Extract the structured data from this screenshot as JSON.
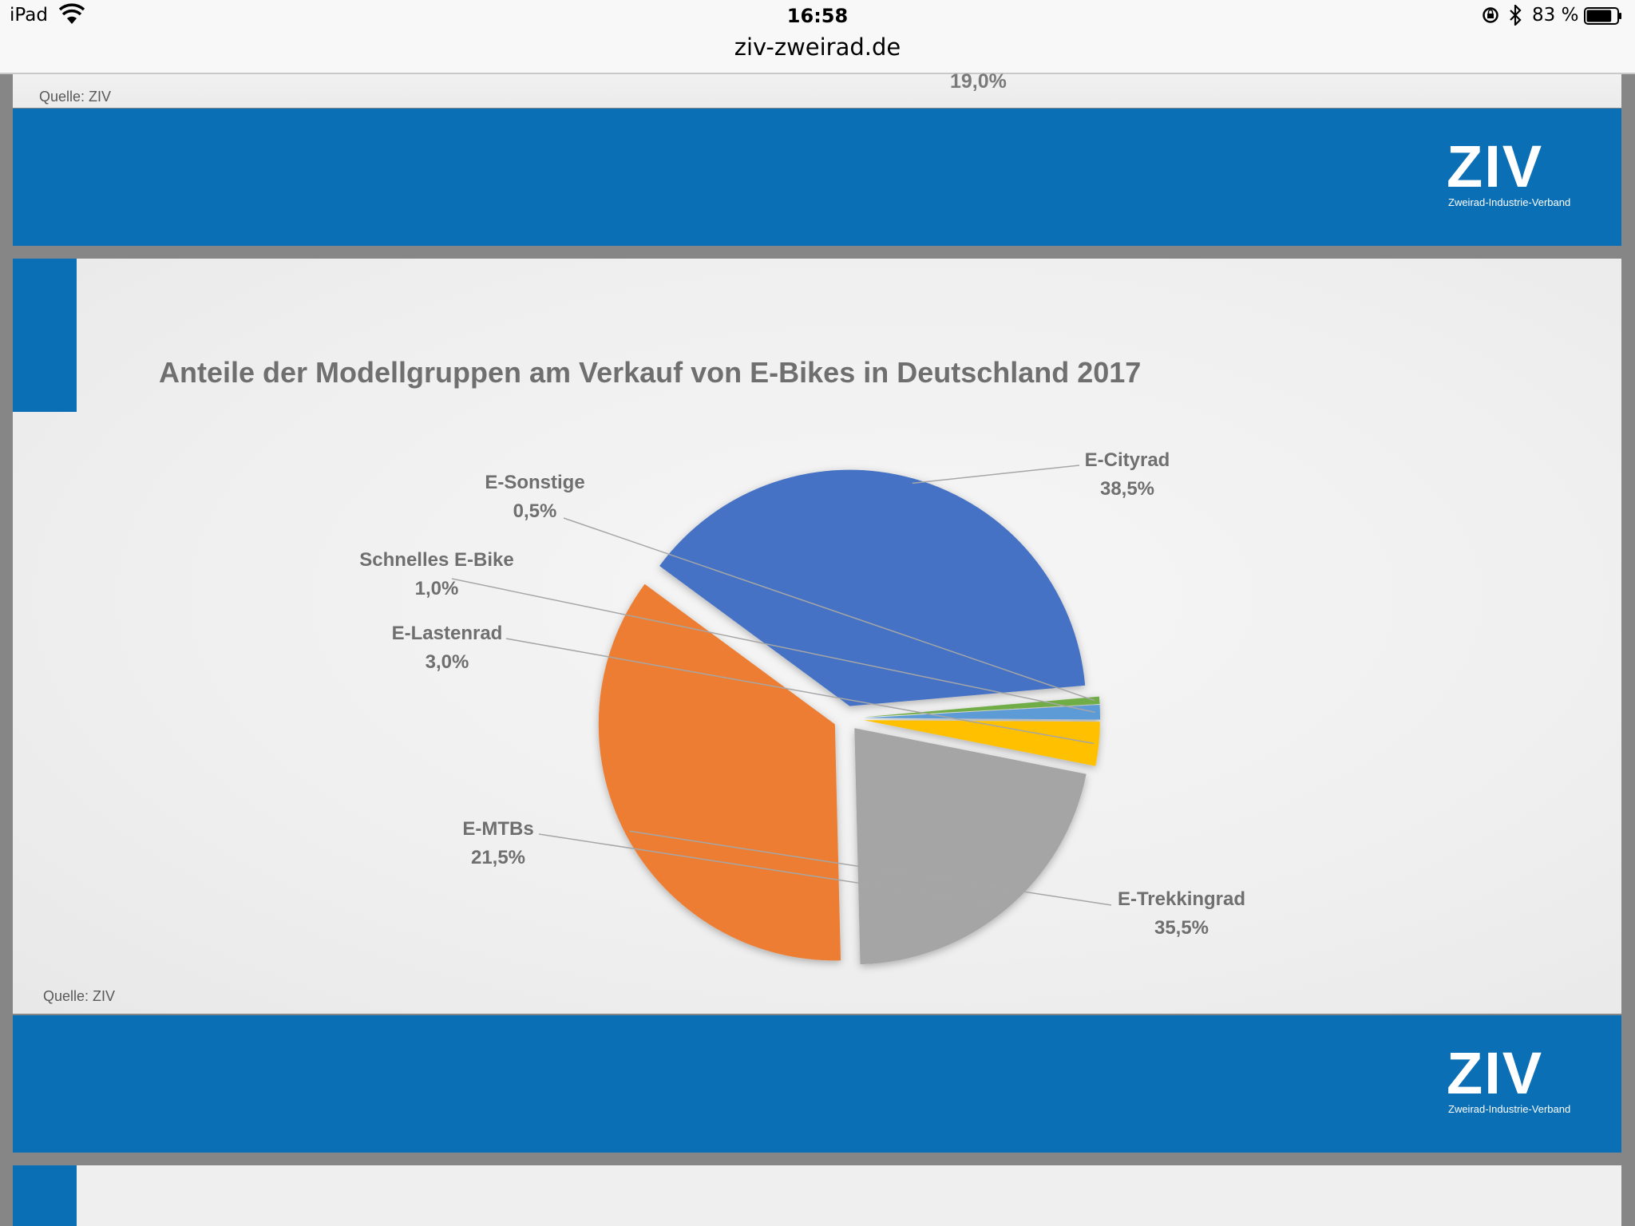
{
  "status_bar": {
    "device": "iPad",
    "time": "16:58",
    "url": "ziv-zweirad.de",
    "battery": "83 %",
    "battery_level": 0.83
  },
  "previous_slide": {
    "source": "Quelle: ZIV",
    "partial_label": "19,0%"
  },
  "logo": {
    "word": "ZIV",
    "subtitle": "Zweirad-Industrie-Verband"
  },
  "slide": {
    "source": "Quelle: ZIV"
  },
  "colors": {
    "brand_blue": "#0a6fb5"
  },
  "chart_data": {
    "type": "pie",
    "title": "Anteile der Modellgruppen am Verkauf von E-Bikes in Deutschland 2017",
    "slices": [
      {
        "name": "E-Cityrad",
        "label": "38,5%",
        "value": 38.5,
        "color": "#4472c4"
      },
      {
        "name": "E-Trekkingrad",
        "label": "35,5%",
        "value": 35.5,
        "color": "#ed7d31"
      },
      {
        "name": "E-MTBs",
        "label": "21,5%",
        "value": 21.5,
        "color": "#a5a5a5"
      },
      {
        "name": "E-Lastenrad",
        "label": "3,0%",
        "value": 3.0,
        "color": "#ffc000"
      },
      {
        "name": "Schnelles E-Bike",
        "label": "1,0%",
        "value": 1.0,
        "color": "#5b9bd5"
      },
      {
        "name": "E-Sonstige",
        "label": "0,5%",
        "value": 0.5,
        "color": "#70ad47"
      }
    ]
  }
}
